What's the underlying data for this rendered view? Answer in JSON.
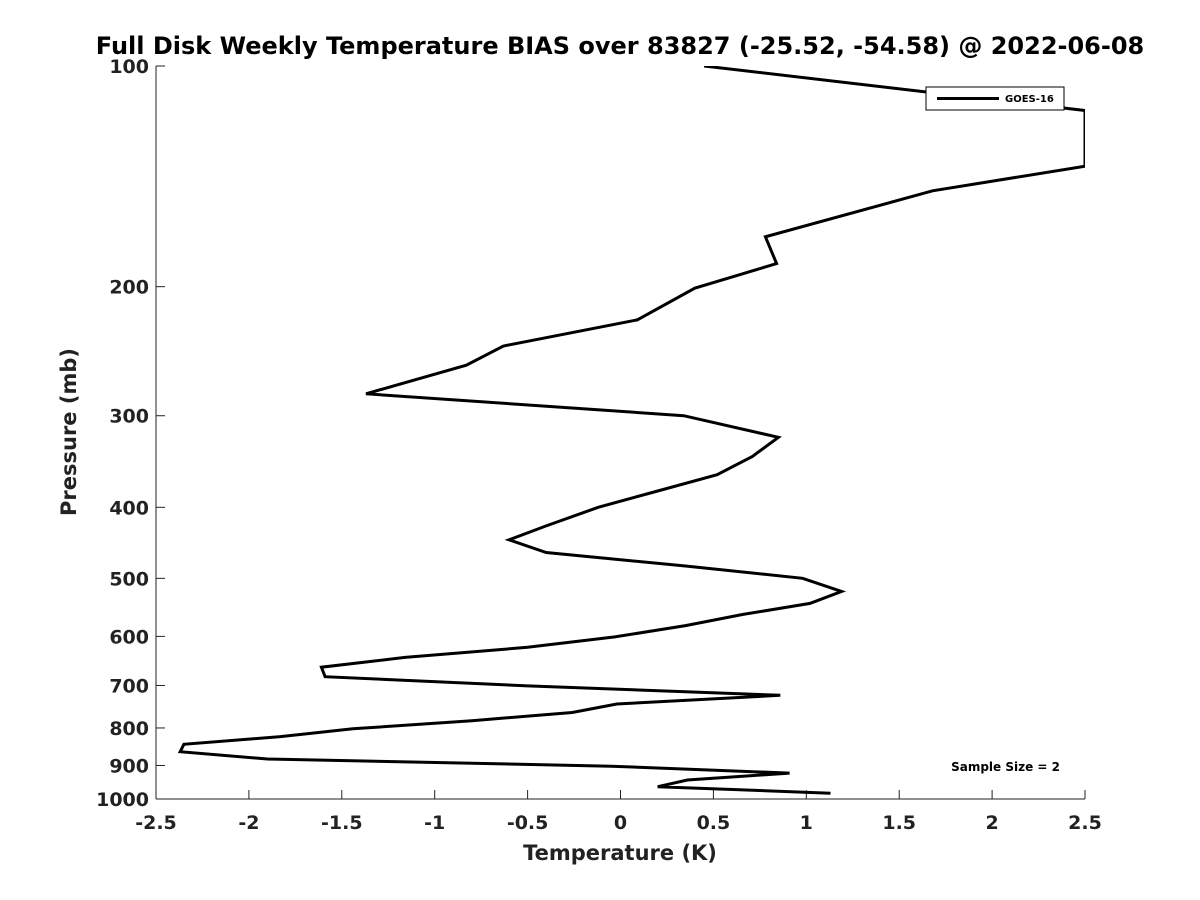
{
  "chart_data": {
    "type": "line",
    "title": "Full Disk Weekly Temperature BIAS over 83827 (-25.52, -54.58) @ 2022-06-08",
    "xlabel": "Temperature (K)",
    "ylabel": "Pressure (mb)",
    "xlim": [
      -2.5,
      2.5
    ],
    "ylim": [
      100,
      1000
    ],
    "yscale": "log",
    "y_reversed": true,
    "x_ticks": [
      "-2.5",
      "-2",
      "-1.5",
      "-1",
      "-0.5",
      "0",
      "0.5",
      "1",
      "1.5",
      "2",
      "2.5"
    ],
    "y_ticks": [
      "100",
      "200",
      "300",
      "400",
      "500",
      "600",
      "700",
      "800",
      "900",
      "1000"
    ],
    "grid": false,
    "legend_position": "top-right",
    "annotation": "Sample Size = 2",
    "line_color": "#000000",
    "series": [
      {
        "name": "GOES-16",
        "points": [
          [
            0.45,
            100
          ],
          [
            2.5,
            115
          ],
          [
            2.5,
            137
          ],
          [
            1.68,
            148
          ],
          [
            0.78,
            171
          ],
          [
            0.84,
            186
          ],
          [
            0.4,
            201
          ],
          [
            0.09,
            222
          ],
          [
            -0.63,
            241
          ],
          [
            -0.83,
            256
          ],
          [
            -1.37,
            280
          ],
          [
            0.34,
            300
          ],
          [
            0.85,
            321
          ],
          [
            0.71,
            341
          ],
          [
            0.52,
            361
          ],
          [
            0.2,
            380
          ],
          [
            -0.12,
            400
          ],
          [
            -0.4,
            424
          ],
          [
            -0.6,
            443
          ],
          [
            -0.4,
            461
          ],
          [
            0.35,
            481
          ],
          [
            0.98,
            500
          ],
          [
            1.19,
            521
          ],
          [
            1.02,
            541
          ],
          [
            0.66,
            560
          ],
          [
            0.35,
            580
          ],
          [
            -0.03,
            601
          ],
          [
            -0.5,
            621
          ],
          [
            -1.16,
            641
          ],
          [
            -1.61,
            661
          ],
          [
            -1.59,
            681
          ],
          [
            -0.5,
            701
          ],
          [
            0.86,
            722
          ],
          [
            -0.02,
            742
          ],
          [
            -0.26,
            762
          ],
          [
            -0.8,
            782
          ],
          [
            -1.44,
            802
          ],
          [
            -1.83,
            822
          ],
          [
            -2.35,
            842
          ],
          [
            -2.37,
            862
          ],
          [
            -1.9,
            882
          ],
          [
            -0.05,
            902
          ],
          [
            0.91,
            922
          ],
          [
            0.36,
            942
          ],
          [
            0.2,
            962
          ],
          [
            1.13,
            982
          ]
        ]
      }
    ]
  }
}
